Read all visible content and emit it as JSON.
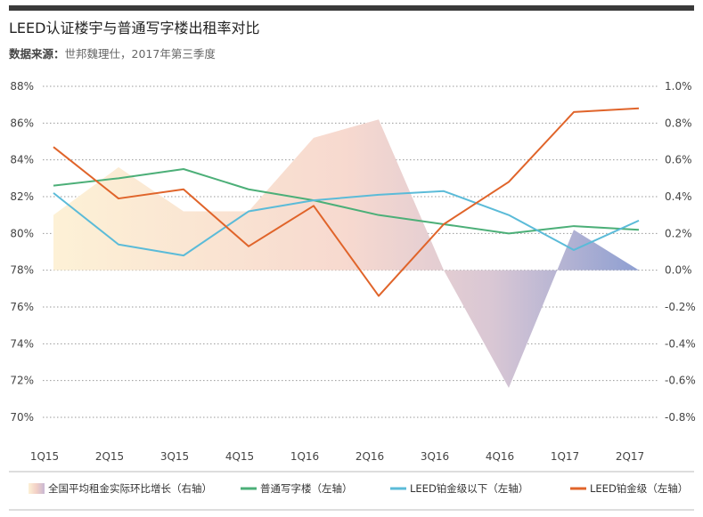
{
  "title": "LEED认证楼宇与普通写字楼出租率对比",
  "source_label": "数据来源：",
  "source_text": "世邦魏理仕，2017年第三季度",
  "chart_data": {
    "type": "line",
    "categories": [
      "1Q15",
      "2Q15",
      "3Q15",
      "4Q15",
      "1Q16",
      "2Q16",
      "3Q16",
      "4Q16",
      "1Q17",
      "2Q17"
    ],
    "left_axis": {
      "ylim": [
        70,
        88
      ],
      "ticks": [
        88,
        86,
        84,
        82,
        80,
        78,
        76,
        74,
        72,
        70
      ],
      "tick_labels": [
        "88%",
        "86%",
        "84%",
        "82%",
        "80%",
        "78%",
        "76%",
        "74%",
        "72%",
        "70%"
      ]
    },
    "right_axis": {
      "ylim": [
        -0.8,
        1.0
      ],
      "ticks": [
        1.0,
        0.8,
        0.6,
        0.4,
        0.2,
        0.0,
        -0.2,
        -0.4,
        -0.6,
        -0.8
      ],
      "tick_labels": [
        "1.0%",
        "0.8%",
        "0.6%",
        "0.4%",
        "0.2%",
        "0.0%",
        "-0.2%",
        "-0.4%",
        "-0.6%",
        "-0.8%"
      ]
    },
    "grid": true,
    "legend_position": "bottom",
    "series": [
      {
        "name": "全国平均租金实际环比增长（右轴）",
        "type": "area",
        "axis": "right",
        "values": [
          0.3,
          0.56,
          0.32,
          0.32,
          0.72,
          0.82,
          0.0,
          -0.64,
          0.22,
          0.0
        ]
      },
      {
        "name": "普通写字楼（左轴）",
        "type": "line",
        "axis": "left",
        "color": "#4caf78",
        "values": [
          82.6,
          83.0,
          83.5,
          82.4,
          81.8,
          81.0,
          80.5,
          80.0,
          80.4,
          80.2
        ]
      },
      {
        "name": "LEED铂金级以下（左轴）",
        "type": "line",
        "axis": "left",
        "color": "#5bbbd8",
        "values": [
          82.2,
          79.4,
          78.8,
          81.2,
          81.8,
          82.1,
          82.3,
          81.0,
          79.1,
          80.7
        ]
      },
      {
        "name": "LEED铂金级（左轴）",
        "type": "line",
        "axis": "left",
        "color": "#e0642a",
        "values": [
          84.7,
          81.9,
          82.4,
          79.3,
          81.5,
          76.6,
          80.5,
          82.8,
          86.6,
          86.8
        ]
      }
    ]
  }
}
